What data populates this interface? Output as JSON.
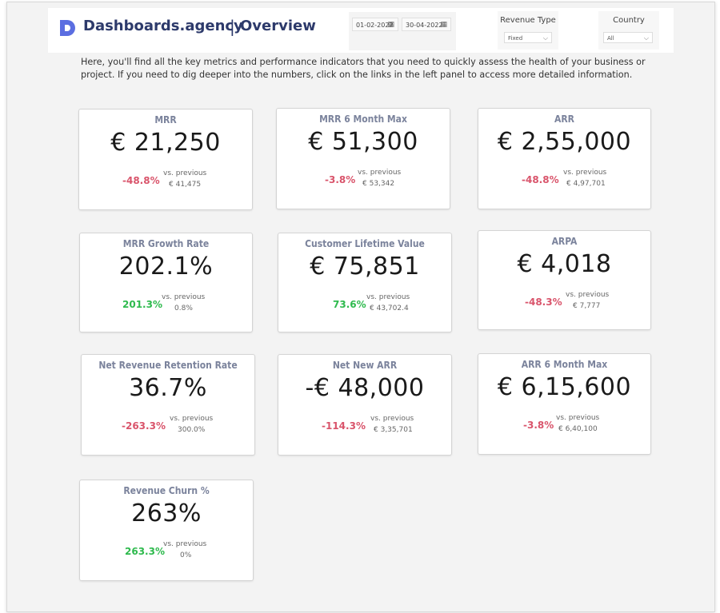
{
  "header": {
    "brand": "Dashboards.agency",
    "separator": "|",
    "page_title": "Overview",
    "date_start": "01-02-2022",
    "date_end": "30-04-2022",
    "filters": [
      {
        "label": "Revenue Type",
        "value": "Fixed"
      },
      {
        "label": "Country",
        "value": "All"
      }
    ]
  },
  "intro": "Here, you'll find all the key metrics and performance indicators that you need to quickly assess the health of your business or project. If you need to dig deeper into the numbers, click on the links in the left panel to access more detailed information.",
  "cards": [
    {
      "title": "MRR",
      "value": "€ 21,250",
      "delta": "-48.8%",
      "trend": "neg",
      "vs": "vs. previous",
      "prev": "€ 41,475"
    },
    {
      "title": "MRR 6 Month Max",
      "value": "€ 51,300",
      "delta": "-3.8%",
      "trend": "neg",
      "vs": "vs. previous",
      "prev": "€ 53,342"
    },
    {
      "title": "ARR",
      "value": "€ 2,55,000",
      "delta": "-48.8%",
      "trend": "neg",
      "vs": "vs. previous",
      "prev": "€ 4,97,701"
    },
    {
      "title": "MRR Growth Rate",
      "value": "202.1%",
      "delta": "201.3%",
      "trend": "pos",
      "vs": "vs. previous",
      "prev": "0.8%"
    },
    {
      "title": "Customer Lifetime Value",
      "value": "€ 75,851",
      "delta": "73.6%",
      "trend": "pos",
      "vs": "vs. previous",
      "prev": "€ 43,702.4"
    },
    {
      "title": "ARPA",
      "value": "€ 4,018",
      "delta": "-48.3%",
      "trend": "neg",
      "vs": "vs. previous",
      "prev": "€ 7,777"
    },
    {
      "title": "Net Revenue Retention Rate",
      "value": "36.7%",
      "delta": "-263.3%",
      "trend": "neg",
      "vs": "vs. previous",
      "prev": "300.0%"
    },
    {
      "title": "Net New ARR",
      "value": "-€ 48,000",
      "delta": "-114.3%",
      "trend": "neg",
      "vs": "vs. previous",
      "prev": "€ 3,35,701"
    },
    {
      "title": "ARR 6 Month Max",
      "value": "€ 6,15,600",
      "delta": "-3.8%",
      "trend": "neg",
      "vs": "vs. previous",
      "prev": "€ 6,40,100"
    },
    {
      "title": "Revenue Churn %",
      "value": "263%",
      "delta": "263.3%",
      "trend": "pos",
      "vs": "vs. previous",
      "prev": "0%"
    }
  ],
  "colors": {
    "negative": "#d9546b",
    "positive": "#2fba4e",
    "brand": "#2d3a6b",
    "logo": "#5b6ee1"
  }
}
